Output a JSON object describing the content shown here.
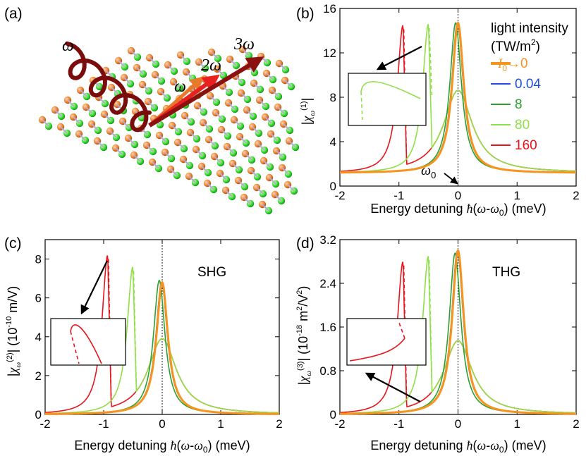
{
  "panel_a": {
    "label": "(a)",
    "arrow_labels": [
      "ω",
      "ω",
      "2ω",
      "3ω"
    ]
  },
  "chart_data": [
    {
      "type": "line",
      "panel": "(b)",
      "xlabel": "Energy detuning ħ(ω-ω0) (meV)",
      "ylabel": "|χω(1)|",
      "xlim": [
        -2,
        2
      ],
      "ylim": [
        0,
        16
      ],
      "xticks": [
        -2,
        -1,
        0,
        1,
        2
      ],
      "yticks": [
        0,
        4,
        8,
        12,
        16
      ],
      "legend_title": [
        "light intensity",
        "(TW/m²)"
      ],
      "annotation": "ω0",
      "series": [
        {
          "name": "I0→0",
          "color": "#f7941d",
          "peak_x": 0.0,
          "peak_y": 14.7
        },
        {
          "name": "0.04",
          "color": "#1f4fe0",
          "peak_x": -0.01,
          "peak_y": 14.7
        },
        {
          "name": "8",
          "color": "#2ca02c",
          "peak_x": -0.04,
          "peak_y": 14.7
        },
        {
          "name": "80",
          "color": "#8fe048",
          "peak_x": -0.5,
          "peak_y": 14.6
        },
        {
          "name": "160",
          "color": "#e8141b",
          "peak_x": -0.93,
          "peak_y": 14.5
        }
      ]
    },
    {
      "type": "line",
      "panel": "(c)",
      "title": "SHG",
      "xlabel": "Energy detuning ħ(ω-ω0) (meV)",
      "ylabel": "|χω(2)| (10⁻¹⁰ m/V)",
      "xlim": [
        -2,
        2
      ],
      "ylim": [
        0,
        9
      ],
      "xticks": [
        -2,
        -1,
        0,
        1,
        2
      ],
      "yticks": [
        0,
        2,
        4,
        6,
        8
      ],
      "series": [
        {
          "name": "I0→0",
          "color": "#f7941d",
          "peak_x": 0.0,
          "peak_y": 6.8
        },
        {
          "name": "0.04",
          "color": "#1f4fe0",
          "peak_x": -0.01,
          "peak_y": 6.8
        },
        {
          "name": "8",
          "color": "#2ca02c",
          "peak_x": -0.05,
          "peak_y": 6.9
        },
        {
          "name": "80",
          "color": "#8fe048",
          "peak_x": -0.5,
          "peak_y": 7.6
        },
        {
          "name": "160",
          "color": "#e8141b",
          "peak_x": -0.93,
          "peak_y": 8.2
        }
      ]
    },
    {
      "type": "line",
      "panel": "(d)",
      "title": "THG",
      "xlabel": "Energy detuning ħ(ω-ω0) (meV)",
      "ylabel": "|χω(3)| (10⁻¹⁸ m²/V²)",
      "xlim": [
        -2,
        2
      ],
      "ylim": [
        0,
        3.2
      ],
      "xticks": [
        -2,
        -1,
        0,
        1,
        2
      ],
      "yticks": [
        0,
        0.8,
        1.6,
        2.4,
        3.2
      ],
      "series": [
        {
          "name": "I0→0",
          "color": "#f7941d",
          "peak_x": 0.0,
          "peak_y": 3.0
        },
        {
          "name": "0.04",
          "color": "#1f4fe0",
          "peak_x": -0.01,
          "peak_y": 3.0
        },
        {
          "name": "8",
          "color": "#2ca02c",
          "peak_x": -0.05,
          "peak_y": 2.95
        },
        {
          "name": "80",
          "color": "#8fe048",
          "peak_x": -0.5,
          "peak_y": 2.9
        },
        {
          "name": "160",
          "color": "#e8141b",
          "peak_x": -0.93,
          "peak_y": 2.8
        }
      ]
    }
  ]
}
